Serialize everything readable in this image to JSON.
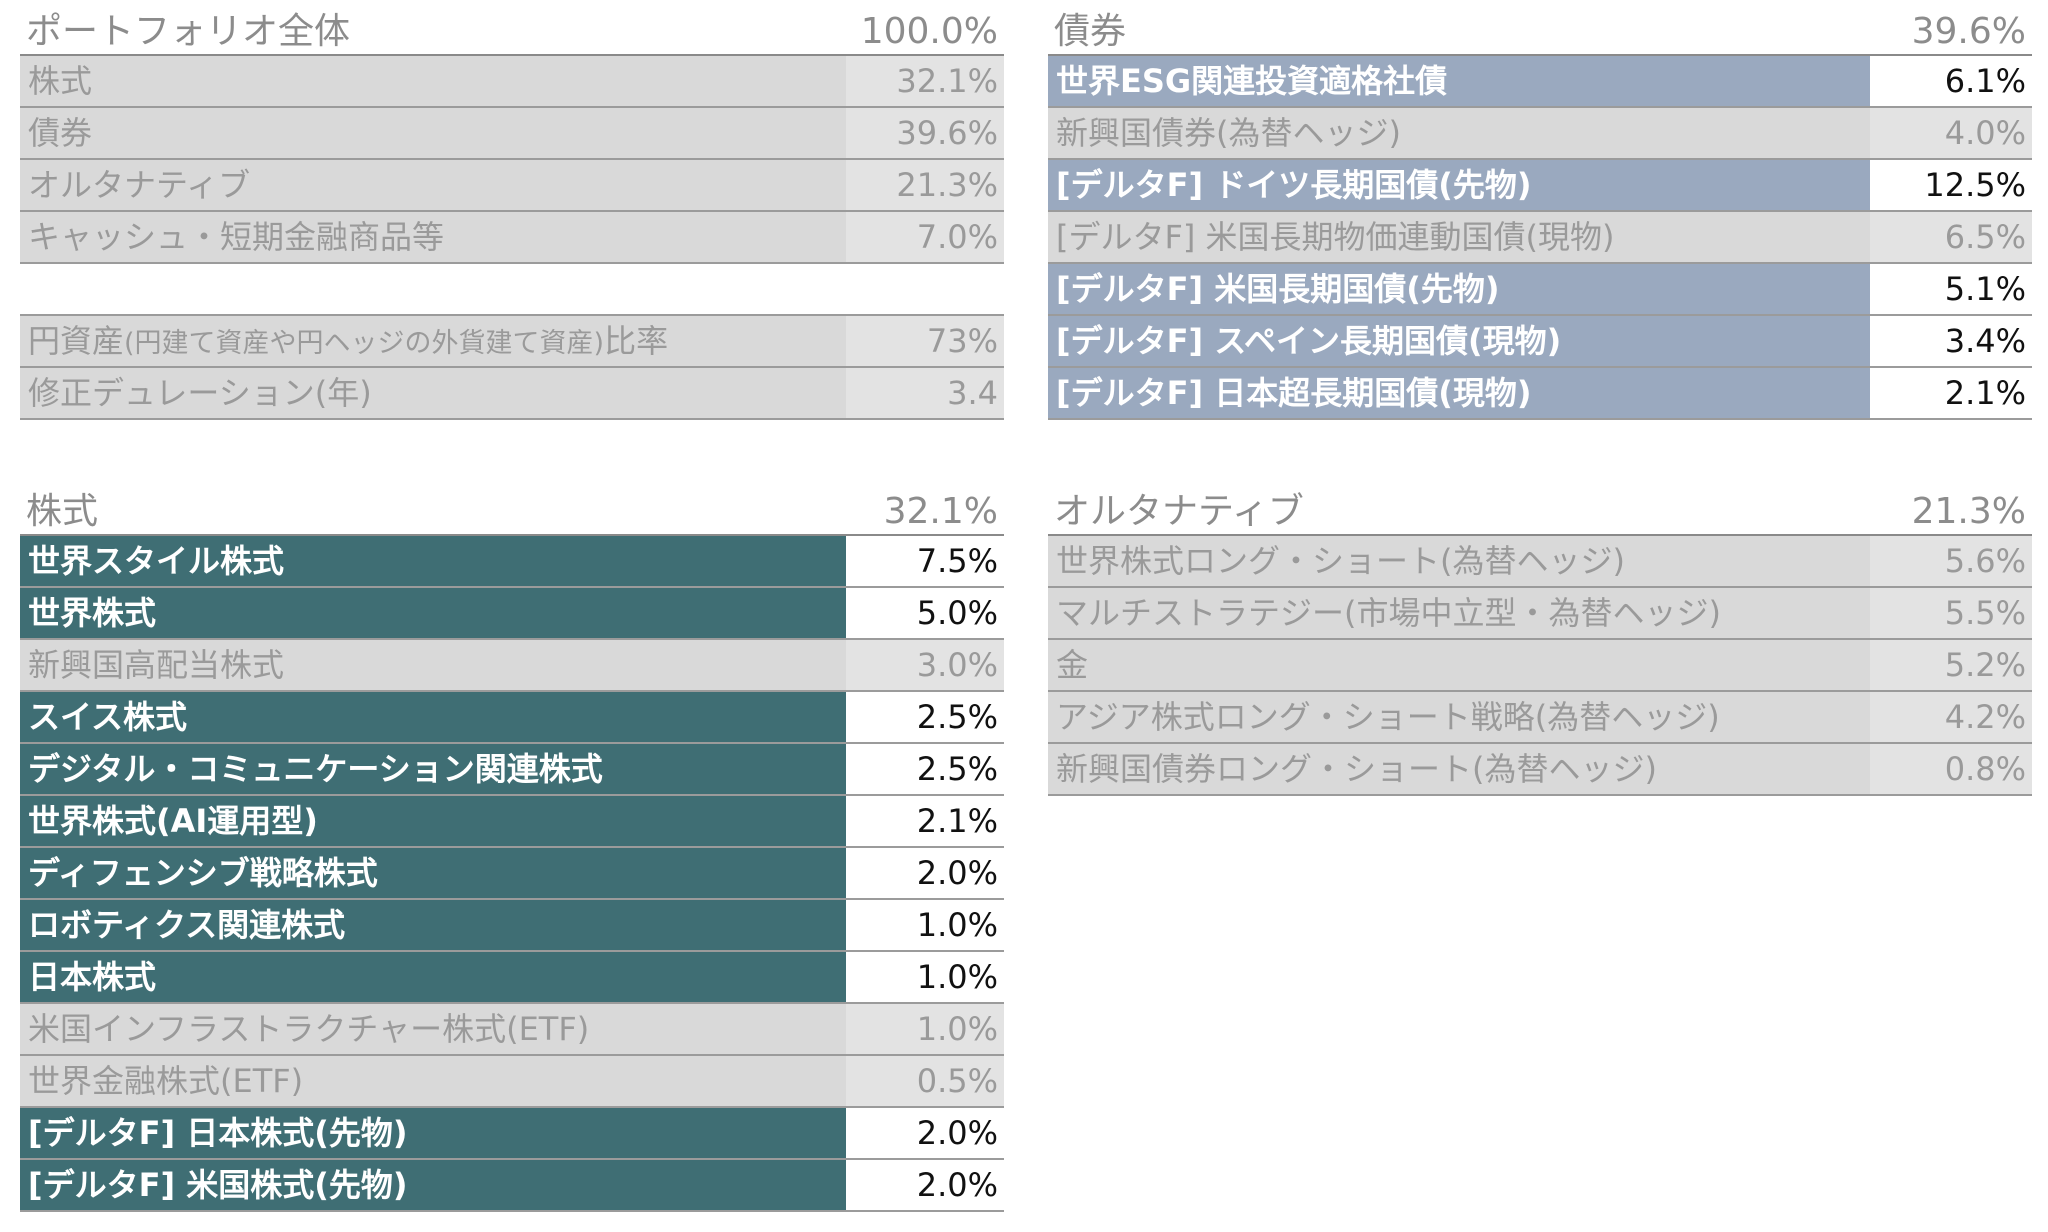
{
  "portfolio": {
    "title": "ポートフォリオ全体",
    "total": "100.0%",
    "rows": [
      {
        "label": "株式",
        "value": "32.1%"
      },
      {
        "label": "債券",
        "value": "39.6%"
      },
      {
        "label": "オルタナティブ",
        "value": "21.3%"
      },
      {
        "label": "キャッシュ・短期金融商品等",
        "value": "7.0%"
      }
    ],
    "yen_ratio": {
      "label_main": "円資産",
      "label_sub": "(円建て資産や円ヘッジの外貨建て資産)",
      "label_end": "比率",
      "value": "73%"
    },
    "duration": {
      "label": "修正デュレーション(年)",
      "value": "3.4"
    }
  },
  "bonds": {
    "title": "債券",
    "total": "39.6%",
    "rows": [
      {
        "label": "世界ESG関連投資適格社債",
        "value": "6.1%",
        "style": "blue"
      },
      {
        "label": "新興国債券(為替ヘッジ)",
        "value": "4.0%",
        "style": "gray"
      },
      {
        "label": "[デルタF] ドイツ長期国債(先物)",
        "value": "12.5%",
        "style": "blue"
      },
      {
        "label": "[デルタF] 米国長期物価連動国債(現物)",
        "value": "6.5%",
        "style": "gray"
      },
      {
        "label": "[デルタF] 米国長期国債(先物)",
        "value": "5.1%",
        "style": "blue"
      },
      {
        "label": "[デルタF] スペイン長期国債(現物)",
        "value": "3.4%",
        "style": "blue"
      },
      {
        "label": "[デルタF] 日本超長期国債(現物)",
        "value": "2.1%",
        "style": "blue"
      }
    ]
  },
  "equities": {
    "title": "株式",
    "total": "32.1%",
    "rows": [
      {
        "label": "世界スタイル株式",
        "value": "7.5%",
        "style": "teal"
      },
      {
        "label": "世界株式",
        "value": "5.0%",
        "style": "teal"
      },
      {
        "label": "新興国高配当株式",
        "value": "3.0%",
        "style": "gray"
      },
      {
        "label": "スイス株式",
        "value": "2.5%",
        "style": "teal"
      },
      {
        "label": "デジタル・コミュニケーション関連株式",
        "value": "2.5%",
        "style": "teal"
      },
      {
        "label": "世界株式(AI運用型)",
        "value": "2.1%",
        "style": "teal"
      },
      {
        "label": "ディフェンシブ戦略株式",
        "value": "2.0%",
        "style": "teal"
      },
      {
        "label": "ロボティクス関連株式",
        "value": "1.0%",
        "style": "teal"
      },
      {
        "label": "日本株式",
        "value": "1.0%",
        "style": "teal"
      },
      {
        "label": "米国インフラストラクチャー株式(ETF)",
        "value": "1.0%",
        "style": "gray"
      },
      {
        "label": "世界金融株式(ETF)",
        "value": "0.5%",
        "style": "gray"
      },
      {
        "label": "[デルタF] 日本株式(先物)",
        "value": "2.0%",
        "style": "teal"
      },
      {
        "label": "[デルタF] 米国株式(先物)",
        "value": "2.0%",
        "style": "teal"
      }
    ]
  },
  "alternatives": {
    "title": "オルタナティブ",
    "total": "21.3%",
    "rows": [
      {
        "label": "世界株式ロング・ショート(為替ヘッジ)",
        "value": "5.6%",
        "style": "gray"
      },
      {
        "label": "マルチストラテジー(市場中立型・為替ヘッジ)",
        "value": "5.5%",
        "style": "gray"
      },
      {
        "label": "金",
        "value": "5.2%",
        "style": "gray"
      },
      {
        "label": "アジア株式ロング・ショート戦略(為替ヘッジ)",
        "value": "4.2%",
        "style": "gray"
      },
      {
        "label": "新興国債券ロング・ショート(為替ヘッジ)",
        "value": "0.8%",
        "style": "gray"
      }
    ]
  }
}
